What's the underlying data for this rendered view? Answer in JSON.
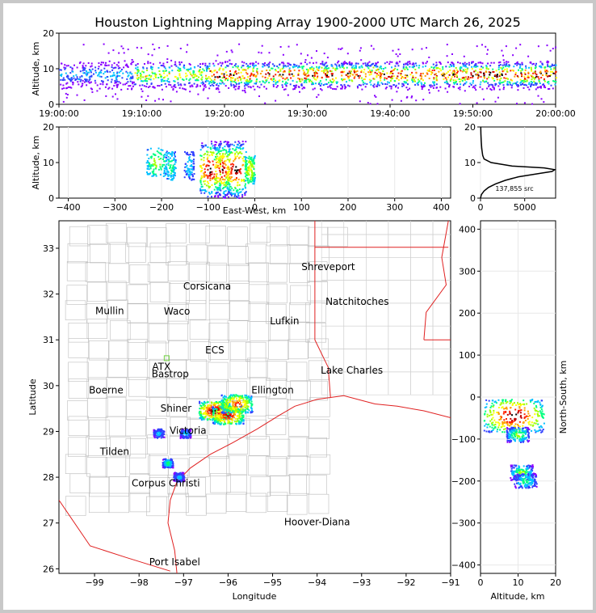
{
  "title": "Houston Lightning Mapping Array 1900-2000 UTC March 26, 2025",
  "colors": {
    "border_state": "#e02020",
    "coast": "#e02020",
    "county": "#bbbbbb",
    "frame": "#c8c8c8"
  },
  "panels": {
    "time_height": {
      "ylabel": "Altitude, km",
      "yticks": [
        "0",
        "10",
        "20"
      ],
      "xticks": [
        "19:00:00",
        "19:10:00",
        "19:20:00",
        "19:30:00",
        "19:40:00",
        "19:50:00",
        "20:00:00"
      ]
    },
    "ew_height": {
      "ylabel": "Altitude, km",
      "xlabel": "East-West, km",
      "yticks": [
        "0",
        "10",
        "20"
      ],
      "xticks": [
        "−400",
        "−300",
        "−200",
        "−100",
        "0",
        "100",
        "200",
        "300",
        "400"
      ]
    },
    "histogram": {
      "yticks": [
        "0",
        "10",
        "20"
      ],
      "xticks": [
        "0",
        "5000"
      ],
      "count_label": "137,855 src"
    },
    "map": {
      "xlabel": "Longitude",
      "ylabel": "Latitude",
      "xticks": [
        "−99",
        "−98",
        "−97",
        "−96",
        "−95",
        "−94",
        "−93",
        "−92",
        "−91"
      ],
      "yticks": [
        "26",
        "27",
        "28",
        "29",
        "30",
        "31",
        "32",
        "33"
      ],
      "cities": [
        {
          "name": "Shreveport",
          "lon": -93.75,
          "lat": 32.52,
          "color": "#000000"
        },
        {
          "name": "Corsicana",
          "lon": -96.47,
          "lat": 32.1,
          "color": "#000000"
        },
        {
          "name": "Natchitoches",
          "lon": -93.1,
          "lat": 31.76,
          "color": "#000000"
        },
        {
          "name": "Mullin",
          "lon": -98.66,
          "lat": 31.56,
          "color": "#f08a4b"
        },
        {
          "name": "Waco",
          "lon": -97.15,
          "lat": 31.55,
          "color": "#000000"
        },
        {
          "name": "Lufkin",
          "lon": -94.73,
          "lat": 31.34,
          "color": "#000000"
        },
        {
          "name": "ECS",
          "lon": -96.3,
          "lat": 30.7,
          "color": "#5a1a1a"
        },
        {
          "name": "ATX",
          "lon": -97.5,
          "lat": 30.34,
          "color": "#f08a4b"
        },
        {
          "name": "Bastrop",
          "lon": -97.3,
          "lat": 30.18,
          "color": "#000000"
        },
        {
          "name": "Lake Charles",
          "lon": -93.22,
          "lat": 30.26,
          "color": "#000000"
        },
        {
          "name": "Boerne",
          "lon": -98.74,
          "lat": 29.83,
          "color": "#000000"
        },
        {
          "name": "Ellington",
          "lon": -95.0,
          "lat": 29.83,
          "color": "#f0a020"
        },
        {
          "name": "Shiner",
          "lon": -97.17,
          "lat": 29.43,
          "color": "#000000"
        },
        {
          "name": "Victoria",
          "lon": -96.9,
          "lat": 28.95,
          "color": "#000000"
        },
        {
          "name": "Tilden",
          "lon": -98.55,
          "lat": 28.49,
          "color": "#000000"
        },
        {
          "name": "Corpus Christi",
          "lon": -97.4,
          "lat": 27.8,
          "color": "#000000"
        },
        {
          "name": "Hoover-Diana",
          "lon": -94.0,
          "lat": 26.95,
          "color": "#1a1acc"
        },
        {
          "name": "Port Isabel",
          "lon": -97.2,
          "lat": 26.08,
          "color": "#000000"
        }
      ]
    },
    "ns_height": {
      "ylabel": "North-South, km",
      "xlabel": "Altitude, km",
      "xticks": [
        "0",
        "10",
        "20"
      ],
      "yticks": [
        "−400",
        "−300",
        "−200",
        "−100",
        "0",
        "100",
        "200",
        "300",
        "400"
      ]
    }
  },
  "chart_data": [
    {
      "type": "heatmap",
      "name": "time-height",
      "x_range": [
        "19:00:00",
        "20:00:00"
      ],
      "ylim": [
        0,
        20
      ],
      "ylabel": "Altitude, km",
      "density_peak_altitude_km": 8,
      "note_series": [
        {
          "time": "19:00",
          "alt_center": 8,
          "intensity": 0.3
        },
        {
          "time": "19:10",
          "alt_center": 9,
          "intensity": 0.5
        },
        {
          "time": "19:20",
          "alt_center": 8,
          "intensity": 0.9
        },
        {
          "time": "19:30",
          "alt_center": 8,
          "intensity": 0.7
        },
        {
          "time": "19:40",
          "alt_center": 8,
          "intensity": 0.9
        },
        {
          "time": "19:50",
          "alt_center": 8,
          "intensity": 0.9
        },
        {
          "time": "20:00",
          "alt_center": 8,
          "intensity": 0.8
        }
      ]
    },
    {
      "type": "heatmap",
      "name": "east-west-height",
      "xlim": [
        -420,
        420
      ],
      "ylim": [
        0,
        20
      ],
      "xlabel": "East-West, km",
      "ylabel": "Altitude, km",
      "cells": [
        {
          "x": -210,
          "alt": 10,
          "w": 20,
          "intensity": 0.5
        },
        {
          "x": -180,
          "alt": 9,
          "w": 10,
          "intensity": 0.4
        },
        {
          "x": -140,
          "alt": 9,
          "w": 10,
          "intensity": 0.3
        },
        {
          "x": -95,
          "alt": 8,
          "w": 20,
          "intensity": 1.0
        },
        {
          "x": -70,
          "alt": 8,
          "w": 15,
          "intensity": 0.95
        },
        {
          "x": -40,
          "alt": 8,
          "w": 20,
          "intensity": 1.0
        },
        {
          "x": -10,
          "alt": 8,
          "w": 10,
          "intensity": 0.6
        }
      ]
    },
    {
      "type": "line",
      "name": "altitude-histogram",
      "xlim": [
        0,
        8500
      ],
      "ylim": [
        0,
        20
      ],
      "total_sources": 137855,
      "altitude_km": [
        0,
        1,
        2,
        3,
        4,
        5,
        6,
        7,
        7.5,
        8,
        8.5,
        9,
        10,
        11,
        12,
        14,
        16,
        18,
        20
      ],
      "counts": [
        0,
        100,
        400,
        900,
        1700,
        2800,
        4300,
        6800,
        8100,
        8400,
        7200,
        3600,
        1200,
        400,
        250,
        140,
        80,
        50,
        30
      ]
    },
    {
      "type": "scatter",
      "name": "plan-view",
      "xlim": [
        -99.8,
        -91.0
      ],
      "ylim": [
        25.9,
        33.6
      ],
      "xlabel": "Longitude",
      "ylabel": "Latitude",
      "clusters": [
        {
          "lon": -96.3,
          "lat": 29.45,
          "intensity": 1.0
        },
        {
          "lon": -96.0,
          "lat": 29.35,
          "intensity": 0.9
        },
        {
          "lon": -95.8,
          "lat": 29.6,
          "intensity": 0.8
        },
        {
          "lon": -97.35,
          "lat": 28.3,
          "intensity": 0.4
        },
        {
          "lon": -97.1,
          "lat": 28.0,
          "intensity": 0.3
        },
        {
          "lon": -97.55,
          "lat": 28.95,
          "intensity": 0.3
        },
        {
          "lon": -96.95,
          "lat": 28.95,
          "intensity": 0.3
        }
      ]
    },
    {
      "type": "heatmap",
      "name": "north-south-altitude",
      "xlim": [
        0,
        20
      ],
      "ylim": [
        -420,
        420
      ],
      "xlabel": "Altitude, km",
      "ylabel": "North-South, km",
      "cells": [
        {
          "alt": 9,
          "y": -45,
          "intensity": 1.0
        },
        {
          "alt": 10,
          "y": -90,
          "intensity": 0.5
        },
        {
          "alt": 11,
          "y": -180,
          "intensity": 0.5
        },
        {
          "alt": 12,
          "y": -200,
          "intensity": 0.4
        }
      ]
    }
  ]
}
